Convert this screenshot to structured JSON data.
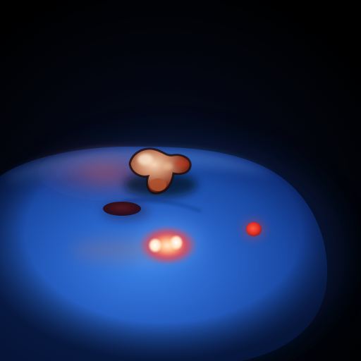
{
  "scene": {
    "subject": "glowing-blue-dome",
    "colors": {
      "background": "#000000",
      "dome_core": "#2a6fd6",
      "dome_mid": "#1f55b4",
      "dome_edge": "#0b2468",
      "dome_rim": "#3b7de0",
      "warm_glow": "#ff3b2a",
      "hot_spot": "#fff2d6",
      "ember": "#e0352a",
      "dark_inclusion": "#3a0d12",
      "cap_highlight": "#f0c5a2",
      "cap_shadow": "#5a1a12"
    }
  }
}
